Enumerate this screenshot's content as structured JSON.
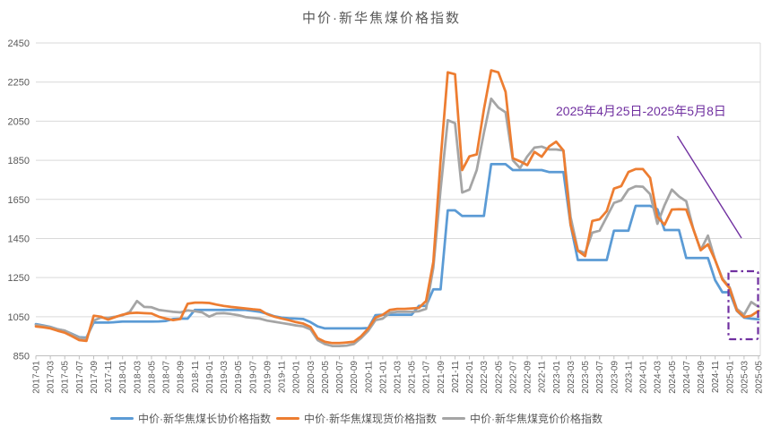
{
  "chart_data": {
    "type": "line",
    "title": "中价·新华焦煤价格指数",
    "ylim": [
      850,
      2450
    ],
    "y_ticks": [
      850,
      1050,
      1250,
      1450,
      1650,
      1850,
      2050,
      2250,
      2450
    ],
    "x_tick_every": 2,
    "grid": true,
    "legend_position": "bottom",
    "colors": {
      "grid": "#D9D9D9",
      "axis": "#BFBFBF",
      "tick_text": "#595959"
    },
    "annotation": {
      "label": "2025年4月25日-2025年5月8日",
      "color": "#7030A0"
    },
    "x": [
      "2017-01",
      "2017-02",
      "2017-03",
      "2017-04",
      "2017-05",
      "2017-06",
      "2017-07",
      "2017-08",
      "2017-09",
      "2017-10",
      "2017-11",
      "2017-12",
      "2018-01",
      "2018-02",
      "2018-03",
      "2018-04",
      "2018-05",
      "2018-06",
      "2018-07",
      "2018-08",
      "2018-09",
      "2018-10",
      "2018-11",
      "2018-12",
      "2019-01",
      "2019-02",
      "2019-03",
      "2019-04",
      "2019-05",
      "2019-06",
      "2019-07",
      "2019-08",
      "2019-09",
      "2019-10",
      "2019-11",
      "2019-12",
      "2020-01",
      "2020-02",
      "2020-03",
      "2020-04",
      "2020-05",
      "2020-06",
      "2020-07",
      "2020-08",
      "2020-09",
      "2020-10",
      "2020-11",
      "2020-12",
      "2021-01",
      "2021-02",
      "2021-03",
      "2021-04",
      "2021-05",
      "2021-06",
      "2021-07",
      "2021-08",
      "2021-09",
      "2021-10",
      "2021-11",
      "2021-12",
      "2022-01",
      "2022-02",
      "2022-03",
      "2022-04",
      "2022-05",
      "2022-06",
      "2022-07",
      "2022-08",
      "2022-09",
      "2022-10",
      "2022-11",
      "2022-12",
      "2023-01",
      "2023-02",
      "2023-03",
      "2023-04",
      "2023-05",
      "2023-06",
      "2023-07",
      "2023-08",
      "2023-09",
      "2023-10",
      "2023-11",
      "2023-12",
      "2024-01",
      "2024-02",
      "2024-03",
      "2024-04",
      "2024-05",
      "2024-06",
      "2024-07",
      "2024-08",
      "2024-09",
      "2024-10",
      "2024-11",
      "2024-12",
      "2025-01",
      "2025-02",
      "2025-03",
      "2025-04",
      "2025-05"
    ],
    "series": [
      {
        "name": "中价·新华焦煤长协价格指数",
        "color": "#5B9BD5",
        "values": [
          1012,
          1005,
          998,
          986,
          978,
          962,
          945,
          943,
          1020,
          1020,
          1020,
          1022,
          1025,
          1025,
          1025,
          1025,
          1025,
          1026,
          1028,
          1038,
          1040,
          1040,
          1085,
          1085,
          1085,
          1085,
          1085,
          1085,
          1085,
          1085,
          1080,
          1075,
          1065,
          1052,
          1045,
          1042,
          1040,
          1038,
          1022,
          1000,
          990,
          990,
          990,
          990,
          990,
          990,
          992,
          1058,
          1060,
          1060,
          1060,
          1060,
          1060,
          1105,
          1105,
          1190,
          1190,
          1594,
          1594,
          1565,
          1565,
          1565,
          1565,
          1830,
          1830,
          1830,
          1800,
          1800,
          1800,
          1800,
          1800,
          1790,
          1790,
          1790,
          1520,
          1340,
          1340,
          1340,
          1340,
          1340,
          1490,
          1490,
          1490,
          1617,
          1617,
          1617,
          1600,
          1493,
          1493,
          1493,
          1350,
          1350,
          1350,
          1350,
          1237,
          1175,
          1175,
          1080,
          1045,
          1040,
          1037
        ]
      },
      {
        "name": "中价·新华焦煤现货价格指数",
        "color": "#ED7D31",
        "values": [
          1000,
          996,
          990,
          978,
          968,
          950,
          930,
          926,
          1055,
          1050,
          1035,
          1048,
          1060,
          1068,
          1070,
          1068,
          1066,
          1050,
          1040,
          1032,
          1038,
          1116,
          1122,
          1122,
          1120,
          1112,
          1105,
          1100,
          1096,
          1092,
          1088,
          1085,
          1063,
          1050,
          1041,
          1032,
          1022,
          1015,
          998,
          940,
          922,
          915,
          915,
          918,
          922,
          950,
          990,
          1045,
          1060,
          1085,
          1090,
          1090,
          1092,
          1095,
          1130,
          1330,
          1850,
          2300,
          2290,
          1800,
          1870,
          1880,
          2110,
          2310,
          2300,
          2200,
          1860,
          1845,
          1825,
          1893,
          1868,
          1920,
          1945,
          1900,
          1520,
          1388,
          1360,
          1540,
          1548,
          1590,
          1705,
          1718,
          1790,
          1805,
          1805,
          1760,
          1560,
          1520,
          1598,
          1600,
          1598,
          1495,
          1390,
          1420,
          1340,
          1240,
          1195,
          1082,
          1048,
          1055,
          1080
        ]
      },
      {
        "name": "中价·新华焦煤竞价价格指数",
        "color": "#A5A5A5",
        "values": [
          1008,
          1003,
          996,
          986,
          979,
          960,
          942,
          938,
          1030,
          1046,
          1044,
          1050,
          1057,
          1075,
          1130,
          1100,
          1098,
          1085,
          1080,
          1075,
          1072,
          1082,
          1078,
          1072,
          1050,
          1066,
          1068,
          1064,
          1058,
          1048,
          1044,
          1040,
          1030,
          1024,
          1018,
          1012,
          1005,
          1000,
          985,
          930,
          910,
          900,
          900,
          902,
          910,
          940,
          978,
          1032,
          1040,
          1070,
          1075,
          1075,
          1075,
          1078,
          1090,
          1300,
          1700,
          2055,
          2040,
          1685,
          1700,
          1800,
          1990,
          2165,
          2120,
          2095,
          1850,
          1810,
          1870,
          1915,
          1920,
          1905,
          1905,
          1900,
          1560,
          1390,
          1375,
          1480,
          1490,
          1560,
          1632,
          1645,
          1700,
          1717,
          1715,
          1677,
          1525,
          1620,
          1700,
          1665,
          1640,
          1495,
          1390,
          1465,
          1340,
          1245,
          1200,
          1090,
          1060,
          1125,
          1100
        ]
      }
    ]
  }
}
